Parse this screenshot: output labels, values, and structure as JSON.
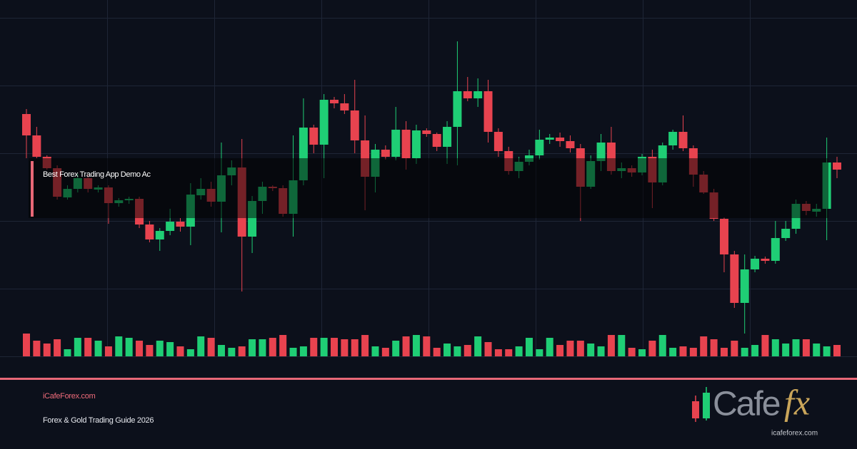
{
  "chart_data": {
    "type": "candlestick",
    "up_color": "#1fce75",
    "down_color": "#e8434f",
    "ylim": [
      0,
      500
    ],
    "volume_ylim": [
      0,
      100
    ],
    "open": [
      340,
      310,
      280,
      264,
      223,
      235,
      250,
      234,
      237,
      215,
      219,
      221,
      185,
      164,
      176,
      189,
      182,
      226,
      235,
      217,
      254,
      265,
      168,
      218,
      238,
      236,
      200,
      247,
      321,
      297,
      360,
      355,
      345,
      303,
      252,
      290,
      280,
      318,
      278,
      317,
      312,
      294,
      322,
      372,
      362,
      372,
      315,
      288,
      260,
      273,
      282,
      304,
      307,
      302,
      292,
      238,
      274,
      300,
      260,
      264,
      258,
      280,
      244,
      296,
      315,
      292,
      255,
      230,
      193,
      143,
      75,
      122,
      137,
      134,
      166,
      179,
      214,
      203,
      207,
      272
    ],
    "high": [
      347,
      322,
      282,
      268,
      240,
      256,
      255,
      240,
      240,
      222,
      224,
      224,
      190,
      180,
      207,
      194,
      243,
      250,
      245,
      300,
      275,
      305,
      225,
      245,
      240,
      240,
      310,
      362,
      325,
      368,
      364,
      368,
      388,
      338,
      298,
      296,
      350,
      330,
      325,
      320,
      314,
      330,
      442,
      392,
      390,
      388,
      320,
      294,
      280,
      290,
      318,
      312,
      314,
      310,
      298,
      282,
      312,
      322,
      272,
      268,
      284,
      290,
      300,
      318,
      338,
      296,
      260,
      235,
      195,
      148,
      143,
      141,
      140,
      190,
      190,
      220,
      218,
      214,
      307,
      280
    ],
    "low": [
      278,
      278,
      262,
      220,
      220,
      230,
      230,
      230,
      186,
      210,
      214,
      180,
      160,
      148,
      170,
      175,
      156,
      220,
      210,
      174,
      240,
      91,
      145,
      200,
      232,
      196,
      168,
      240,
      285,
      250,
      348,
      340,
      285,
      205,
      230,
      276,
      275,
      262,
      270,
      308,
      288,
      270,
      268,
      358,
      350,
      300,
      280,
      255,
      250,
      268,
      276,
      298,
      294,
      286,
      190,
      235,
      260,
      255,
      250,
      252,
      254,
      208,
      240,
      290,
      288,
      238,
      228,
      190,
      118,
      68,
      32,
      118,
      130,
      130,
      162,
      172,
      198,
      196,
      163,
      250
    ],
    "close": [
      310,
      280,
      264,
      224,
      235,
      250,
      235,
      237,
      215,
      219,
      221,
      185,
      164,
      176,
      189,
      182,
      227,
      235,
      217,
      254,
      265,
      168,
      218,
      238,
      236,
      200,
      247,
      321,
      297,
      360,
      355,
      345,
      303,
      252,
      290,
      280,
      318,
      278,
      317,
      312,
      294,
      322,
      372,
      362,
      372,
      315,
      288,
      260,
      273,
      282,
      304,
      307,
      302,
      292,
      238,
      274,
      300,
      260,
      264,
      258,
      280,
      244,
      296,
      315,
      292,
      255,
      230,
      193,
      143,
      75,
      122,
      137,
      134,
      166,
      179,
      214,
      204,
      207,
      272,
      262
    ],
    "volume": [
      32,
      22,
      18,
      24,
      10,
      26,
      26,
      22,
      14,
      28,
      26,
      22,
      16,
      22,
      20,
      14,
      10,
      28,
      26,
      16,
      12,
      14,
      24,
      24,
      26,
      30,
      12,
      14,
      26,
      26,
      26,
      24,
      24,
      30,
      14,
      12,
      22,
      28,
      30,
      28,
      12,
      18,
      14,
      16,
      28,
      20,
      10,
      10,
      14,
      26,
      10,
      26,
      16,
      22,
      22,
      18,
      14,
      30,
      30,
      12,
      10,
      22,
      30,
      12,
      14,
      12,
      28,
      24,
      12,
      22,
      12,
      16,
      30,
      24,
      18,
      24,
      24,
      18,
      14,
      16
    ]
  },
  "overlay": {
    "caption": "Best Forex Trading App Demo Ac"
  },
  "footer": {
    "site": "iCafeForex.com",
    "subtitle": "Forex & Gold Trading Guide 2026"
  },
  "logo": {
    "word": "Cafe",
    "mark": "fx",
    "url": "icafeforex.com"
  }
}
